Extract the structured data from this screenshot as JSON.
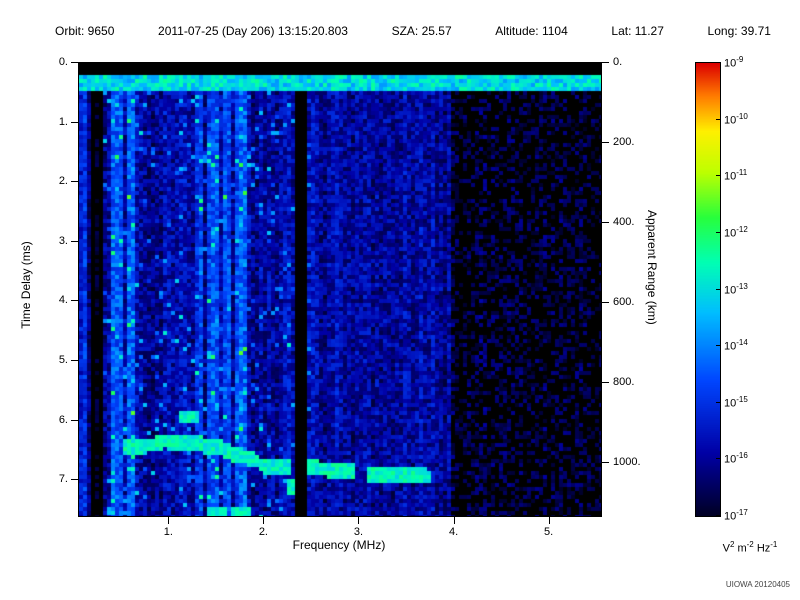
{
  "header": {
    "parts": [
      "Orbit: 9650",
      "2011-07-25 (Day 206) 13:15:20.803",
      "SZA:  25.57",
      "Altitude:   1104",
      "Lat:  11.27",
      "Long:  39.71"
    ]
  },
  "footer": {
    "credit": "UIOWA 20120405"
  },
  "chart_data": {
    "type": "heatmap",
    "subtype": "radar-sounder-ionogram-spectrogram",
    "xlabel": "Frequency (MHz)",
    "ylabel_left": "Time Delay (ms)",
    "ylabel_right": "Apparent Range (km)",
    "x_range_mhz": [
      0.05,
      5.54
    ],
    "x_ticks": {
      "values": [
        1,
        2,
        3,
        4,
        5
      ],
      "labels": [
        "1.",
        "2.",
        "3.",
        "4.",
        "5."
      ]
    },
    "y_range_ms": [
      0,
      7.6
    ],
    "y_ticks_left": {
      "values": [
        0,
        1,
        2,
        3,
        4,
        5,
        6,
        7
      ],
      "labels": [
        "0.",
        "1.",
        "2.",
        "3.",
        "4.",
        "5.",
        "6.",
        "7."
      ]
    },
    "y_right_range_km": [
      0,
      1132
    ],
    "y_ticks_right": {
      "values": [
        0,
        200,
        400,
        600,
        800,
        1000
      ],
      "labels": [
        "0.",
        "200.",
        "400.",
        "600.",
        "800.",
        "1000."
      ]
    },
    "colorbar": {
      "scale_exponents": [
        -9,
        -10,
        -11,
        -12,
        -13,
        -14,
        -15,
        -16,
        -17
      ],
      "min_exponent": -17,
      "max_exponent": -9,
      "unit": {
        "v": "V",
        "v_exp": "2",
        "m": "m",
        "m_exp": "-2",
        "hz": "Hz",
        "hz_exp": "-1"
      }
    },
    "seed": 9650,
    "features": {
      "top_black_strip_ms": [
        0,
        0.18
      ],
      "surface_band": {
        "delay_ms": [
          0.2,
          0.45
        ],
        "exp_base": -13.8,
        "exp_spread": 1.5
      },
      "dark_columns_mhz": [
        [
          2.3,
          2.44
        ],
        [
          0.16,
          0.2
        ],
        [
          0.27,
          0.31
        ]
      ],
      "bright_columns_mhz": [
        0.45,
        0.6,
        1.3,
        1.45,
        1.6,
        1.75
      ],
      "dim_region_start_mhz": 3.95,
      "left_noise_region_mhz": 0.32,
      "echo_trace": [
        {
          "f0": 0.5,
          "f1": 0.95,
          "d0": 6.4,
          "d1": 6.35
        },
        {
          "f0": 0.95,
          "f1": 1.55,
          "d0": 6.3,
          "d1": 6.4
        },
        {
          "f0": 1.55,
          "f1": 1.95,
          "d0": 6.45,
          "d1": 6.65
        },
        {
          "f0": 1.95,
          "f1": 2.28,
          "d0": 6.7,
          "d1": 6.75
        },
        {
          "f0": 2.45,
          "f1": 2.95,
          "d0": 6.75,
          "d1": 6.8
        },
        {
          "f0": 3.05,
          "f1": 3.75,
          "d0": 6.85,
          "d1": 6.9
        }
      ],
      "echo_exp": -12.8,
      "extra_blobs": [
        {
          "f": 1.5,
          "d": 7.5
        },
        {
          "f": 1.75,
          "d": 7.55
        },
        {
          "f": 2.3,
          "d": 7.05
        },
        {
          "f": 1.2,
          "d": 5.9
        }
      ]
    }
  }
}
